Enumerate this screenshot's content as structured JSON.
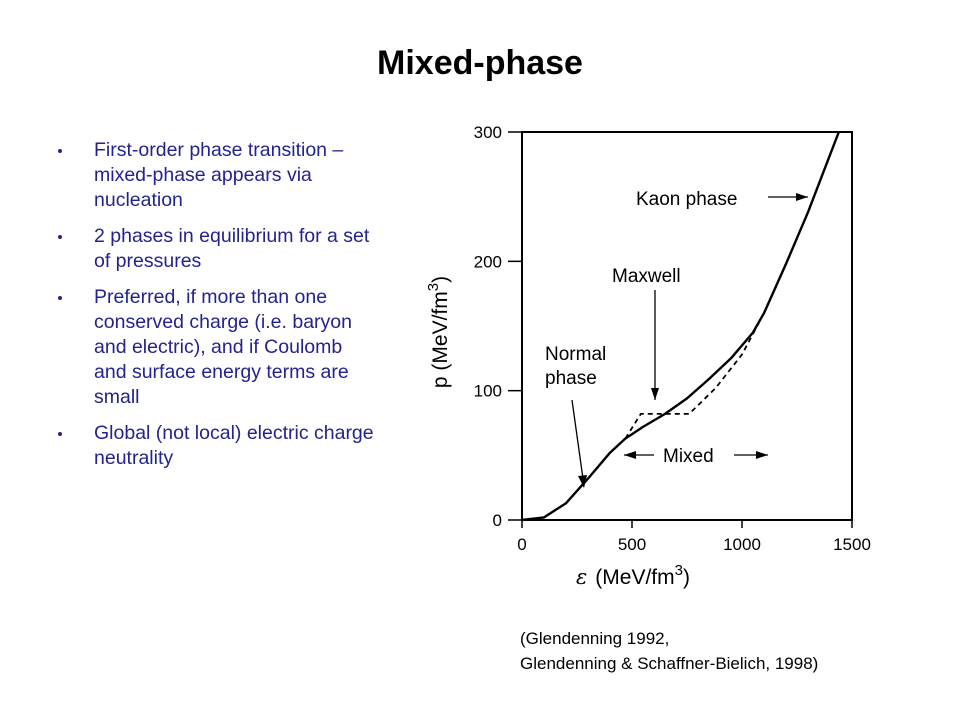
{
  "slide": {
    "title": "Mixed-phase",
    "bullets": [
      "First-order phase transition – mixed-phase appears via nucleation",
      "2 phases in equilibrium for a set of pressures",
      "Preferred, if more than one conserved charge (i.e. baryon and electric), and if Coulomb and surface energy terms are small",
      "Global (not local) electric charge neutrality"
    ],
    "citation": {
      "line1": "(Glendenning 1992,",
      "line2": "Glendenning & Schaffner-Bielich, 1998)"
    }
  },
  "chart_data": {
    "type": "line",
    "xlabel_symbol": "ε",
    "xlabel_unit": "(MeV/fm",
    "xlabel_exp": "3",
    "xlabel_close": ")",
    "ylabel_unit": "p  (MeV/fm",
    "ylabel_exp": "3",
    "ylabel_close": ")",
    "xlim": [
      0,
      1500
    ],
    "ylim": [
      0,
      300
    ],
    "xticks": [
      0,
      500,
      1000,
      1500
    ],
    "yticks": [
      0,
      100,
      200,
      300
    ],
    "series": [
      {
        "style": "solid",
        "x": [
          0,
          100,
          200,
          300,
          400,
          470,
          550,
          650,
          750,
          850,
          950,
          1050,
          1100,
          1200,
          1300,
          1440
        ],
        "y": [
          0,
          2,
          13,
          32,
          52,
          63,
          72,
          82,
          94,
          109,
          125,
          145,
          160,
          198,
          238,
          300
        ]
      },
      {
        "style": "dashed",
        "x": [
          470,
          540,
          760,
          880,
          1000,
          1100
        ],
        "y": [
          63,
          82,
          82,
          102,
          128,
          160
        ]
      }
    ],
    "annotations": [
      {
        "text": "Kaon phase"
      },
      {
        "text": "Maxwell"
      },
      {
        "text": "Normal"
      },
      {
        "text": "phase"
      },
      {
        "text": "Mixed"
      }
    ]
  }
}
